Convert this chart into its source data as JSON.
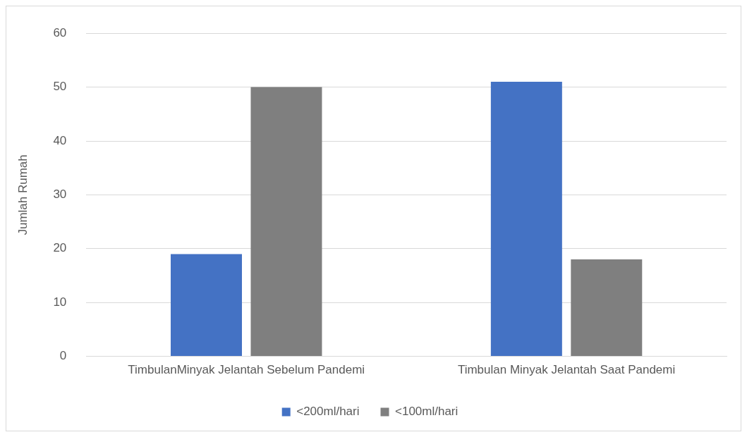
{
  "chart_data": {
    "type": "bar",
    "ylabel": "Jumlah Rumah",
    "categories": [
      "TimbulanMinyak Jelantah Sebelum Pandemi",
      "Timbulan Minyak Jelantah Saat Pandemi"
    ],
    "series": [
      {
        "name": "<200ml/hari",
        "color": "#4472c4",
        "values": [
          19,
          51
        ]
      },
      {
        "name": "<100ml/hari",
        "color": "#7f7f7f",
        "values": [
          50,
          18
        ]
      }
    ],
    "ylim": [
      0,
      60
    ],
    "yticks": [
      0,
      10,
      20,
      30,
      40,
      50,
      60
    ],
    "grid": "y",
    "legend": "bottom"
  }
}
